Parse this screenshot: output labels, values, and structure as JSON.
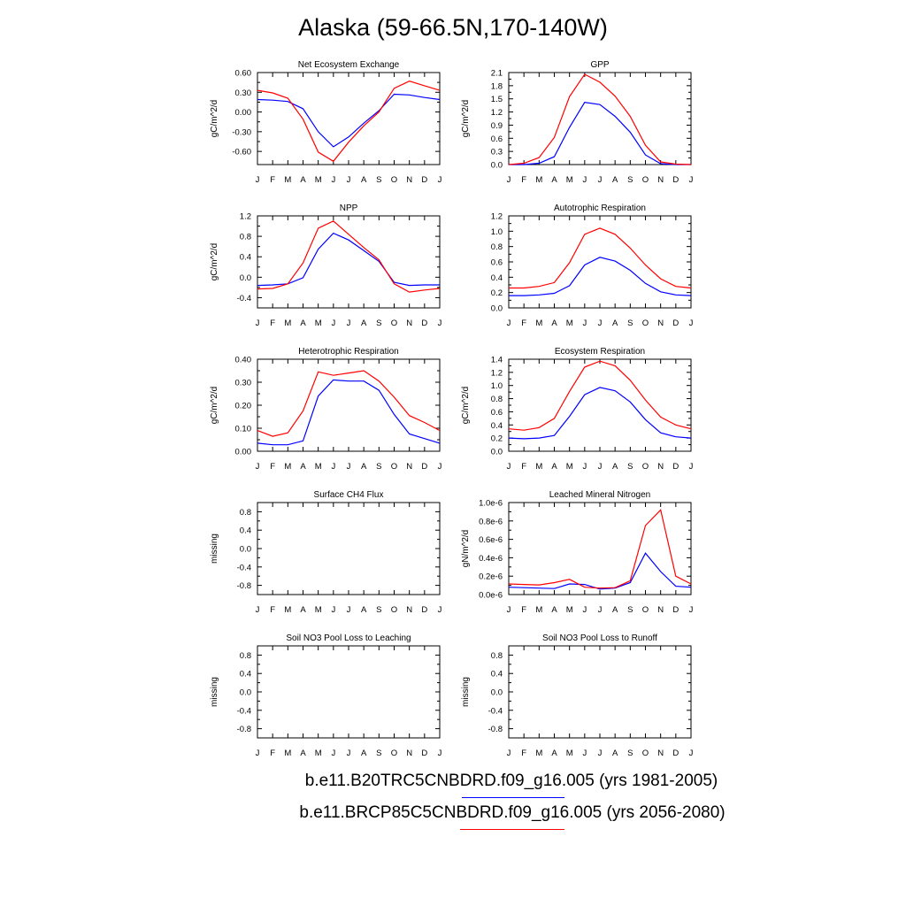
{
  "title": "Alaska (59-66.5N,170-140W)",
  "months": [
    "J",
    "F",
    "M",
    "A",
    "M",
    "J",
    "J",
    "A",
    "S",
    "O",
    "N",
    "D",
    "J"
  ],
  "colors": {
    "series1": "#0000ff",
    "series2": "#ff0000"
  },
  "legend": [
    {
      "label": "b.e11.B20TRC5CNBDRD.f09_g16.005 (yrs 1981-2005)",
      "color": "#0000ff"
    },
    {
      "label": "b.e11.BRCP85C5CNBDRD.f09_g16.005 (yrs 2056-2080)",
      "color": "#ff0000"
    }
  ],
  "chart_data": [
    {
      "type": "line",
      "title": "Net Ecosystem Exchange",
      "ylabel": "gC/m^2/d",
      "ylim": [
        -0.8,
        0.6
      ],
      "yticks": [
        0.6,
        0.3,
        0.0,
        -0.3,
        -0.6
      ],
      "ytick_labels": [
        "0.60",
        "0.30",
        "0.00",
        "-0.30",
        "-0.60"
      ],
      "series": [
        {
          "color": "#0000ff",
          "values": [
            0.19,
            0.18,
            0.16,
            0.05,
            -0.3,
            -0.53,
            -0.38,
            -0.17,
            0.02,
            0.27,
            0.26,
            0.22,
            0.19
          ]
        },
        {
          "color": "#ff0000",
          "values": [
            0.33,
            0.29,
            0.21,
            -0.11,
            -0.61,
            -0.75,
            -0.46,
            -0.21,
            0.0,
            0.36,
            0.47,
            0.4,
            0.33
          ]
        }
      ]
    },
    {
      "type": "line",
      "title": "GPP",
      "ylabel": "gC/m^2/d",
      "ylim": [
        0,
        2.1
      ],
      "yticks": [
        2.1,
        1.8,
        1.5,
        1.2,
        0.9,
        0.6,
        0.3,
        0.0
      ],
      "ytick_labels": [
        "2.1",
        "1.8",
        "1.5",
        "1.2",
        "0.9",
        "0.6",
        "0.3",
        "0.0"
      ],
      "series": [
        {
          "color": "#0000ff",
          "values": [
            0.0,
            0.0,
            0.03,
            0.18,
            0.85,
            1.42,
            1.37,
            1.1,
            0.74,
            0.22,
            0.02,
            0.0,
            0.0
          ]
        },
        {
          "color": "#ff0000",
          "values": [
            0.0,
            0.03,
            0.16,
            0.62,
            1.55,
            2.06,
            1.88,
            1.56,
            1.1,
            0.44,
            0.06,
            0.01,
            0.0
          ]
        }
      ]
    },
    {
      "type": "line",
      "title": "NPP",
      "ylabel": "gC/m^2/d",
      "ylim": [
        -0.6,
        1.2
      ],
      "yticks": [
        1.2,
        0.8,
        0.4,
        0.0,
        -0.4
      ],
      "ytick_labels": [
        "1.2",
        "0.8",
        "0.4",
        "0.0",
        "-0.4"
      ],
      "series": [
        {
          "color": "#0000ff",
          "values": [
            -0.16,
            -0.15,
            -0.13,
            -0.01,
            0.55,
            0.86,
            0.73,
            0.52,
            0.31,
            -0.1,
            -0.16,
            -0.15,
            -0.15
          ]
        },
        {
          "color": "#ff0000",
          "values": [
            -0.23,
            -0.22,
            -0.13,
            0.28,
            0.96,
            1.1,
            0.84,
            0.58,
            0.34,
            -0.13,
            -0.29,
            -0.25,
            -0.22
          ]
        }
      ]
    },
    {
      "type": "line",
      "title": "Autotrophic Respiration",
      "ylabel": "",
      "ylim": [
        0,
        1.2
      ],
      "yticks": [
        1.2,
        1.0,
        0.8,
        0.6,
        0.4,
        0.2,
        0.0
      ],
      "ytick_labels": [
        "1.2",
        "1.0",
        "0.8",
        "0.6",
        "0.4",
        "0.2",
        "0.0"
      ],
      "series": [
        {
          "color": "#0000ff",
          "values": [
            0.16,
            0.16,
            0.17,
            0.19,
            0.29,
            0.56,
            0.66,
            0.61,
            0.49,
            0.32,
            0.21,
            0.17,
            0.16
          ]
        },
        {
          "color": "#ff0000",
          "values": [
            0.26,
            0.26,
            0.28,
            0.33,
            0.59,
            0.96,
            1.04,
            0.96,
            0.78,
            0.56,
            0.38,
            0.28,
            0.26
          ]
        }
      ]
    },
    {
      "type": "line",
      "title": "Heterotrophic Respiration",
      "ylabel": "gC/m^2/d",
      "ylim": [
        0,
        0.4
      ],
      "yticks": [
        0.4,
        0.3,
        0.2,
        0.1,
        0.0
      ],
      "ytick_labels": [
        "0.40",
        "0.30",
        "0.20",
        "0.10",
        "0.00"
      ],
      "series": [
        {
          "color": "#0000ff",
          "values": [
            0.035,
            0.028,
            0.028,
            0.045,
            0.24,
            0.31,
            0.305,
            0.305,
            0.265,
            0.16,
            0.075,
            0.055,
            0.035
          ]
        },
        {
          "color": "#ff0000",
          "values": [
            0.09,
            0.065,
            0.08,
            0.175,
            0.345,
            0.33,
            0.34,
            0.35,
            0.305,
            0.235,
            0.155,
            0.125,
            0.09
          ]
        }
      ]
    },
    {
      "type": "line",
      "title": "Ecosystem Respiration",
      "ylabel": "gC/m^2/d",
      "ylim": [
        0,
        1.4
      ],
      "yticks": [
        1.4,
        1.2,
        1.0,
        0.8,
        0.6,
        0.4,
        0.2,
        0.0
      ],
      "ytick_labels": [
        "1.4",
        "1.2",
        "1.0",
        "0.8",
        "0.6",
        "0.4",
        "0.2",
        "0.0"
      ],
      "series": [
        {
          "color": "#0000ff",
          "values": [
            0.2,
            0.19,
            0.2,
            0.24,
            0.53,
            0.86,
            0.97,
            0.92,
            0.75,
            0.48,
            0.28,
            0.22,
            0.2
          ]
        },
        {
          "color": "#ff0000",
          "values": [
            0.34,
            0.32,
            0.36,
            0.5,
            0.91,
            1.28,
            1.37,
            1.3,
            1.08,
            0.78,
            0.52,
            0.4,
            0.34
          ]
        }
      ]
    },
    {
      "type": "line",
      "title": "Surface CH4 Flux",
      "ylabel": "missing",
      "ylim": [
        -1.0,
        1.0
      ],
      "yticks": [
        0.8,
        0.4,
        0.0,
        -0.4,
        -0.8
      ],
      "ytick_labels": [
        "0.8",
        "0.4",
        "0.0",
        "-0.4",
        "-0.8"
      ],
      "series": []
    },
    {
      "type": "line",
      "title": "Leached Mineral Nitrogen",
      "ylabel": "gN/m^2/d",
      "ylim": [
        0,
        1e-06
      ],
      "yticks": [
        1e-06,
        8e-07,
        6e-07,
        4e-07,
        2e-07,
        0.0
      ],
      "ytick_labels": [
        "1.0e-6",
        "0.8e-6",
        "0.6e-6",
        "0.4e-6",
        "0.2e-6",
        "0.0e-6"
      ],
      "series": [
        {
          "color": "#0000ff",
          "values": [
            8e-08,
            7.5e-08,
            7e-08,
            6.5e-08,
            1.15e-07,
            1.1e-07,
            6e-08,
            7e-08,
            1.3e-07,
            4.5e-07,
            2.5e-07,
            9e-08,
            8e-08
          ]
        },
        {
          "color": "#ff0000",
          "values": [
            1.15e-07,
            1.1e-07,
            1.05e-07,
            1.3e-07,
            1.65e-07,
            8e-08,
            7e-08,
            7.5e-08,
            1.5e-07,
            7.5e-07,
            9.2e-07,
            2e-07,
            1.15e-07
          ]
        }
      ]
    },
    {
      "type": "line",
      "title": "Soil NO3 Pool Loss to Leaching",
      "ylabel": "missing",
      "ylim": [
        -1.0,
        1.0
      ],
      "yticks": [
        0.8,
        0.4,
        0.0,
        -0.4,
        -0.8
      ],
      "ytick_labels": [
        "0.8",
        "0.4",
        "0.0",
        "-0.4",
        "-0.8"
      ],
      "series": []
    },
    {
      "type": "line",
      "title": "Soil NO3 Pool Loss to Runoff",
      "ylabel": "missing",
      "ylim": [
        -1.0,
        1.0
      ],
      "yticks": [
        0.8,
        0.4,
        0.0,
        -0.4,
        -0.8
      ],
      "ytick_labels": [
        "0.8",
        "0.4",
        "0.0",
        "-0.4",
        "-0.8"
      ],
      "series": []
    }
  ]
}
